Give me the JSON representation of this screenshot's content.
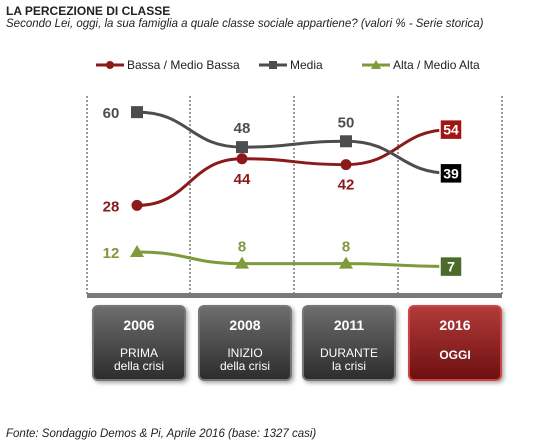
{
  "title": "LA PERCEZIONE DI CLASSE",
  "subtitle": "Secondo Lei, oggi, la sua famiglia a quale classe sociale appartiene?  (valori % - Serie storica)",
  "source": "Fonte: Sondaggio Demos & Pi, Aprile 2016 (base: 1327 casi)",
  "colors": {
    "bassa": "#8b1a1a",
    "media": "#4d4d4d",
    "alta": "#7f9a3a"
  },
  "chart_data": {
    "type": "line",
    "title": "LA PERCEZIONE DI CLASSE",
    "categories": [
      "2006",
      "2008",
      "2011",
      "2016"
    ],
    "ylim": [
      0,
      70
    ],
    "grid": false,
    "legend": "top",
    "series": [
      {
        "name": "Bassa / Medio Bassa",
        "values": [
          28,
          44,
          42,
          54
        ],
        "labels": [
          "28",
          "44",
          "42",
          "54"
        ]
      },
      {
        "name": "Media",
        "values": [
          60,
          48,
          50,
          39
        ],
        "labels": [
          "60",
          "48",
          "50",
          "39"
        ]
      },
      {
        "name": "Alta / Medio Alta",
        "values": [
          12,
          8,
          8,
          7
        ],
        "labels": [
          "12",
          "8",
          "8",
          "7"
        ]
      }
    ]
  },
  "periods": [
    {
      "year": "2006",
      "line1": "PRIMA",
      "line2": "della crisi"
    },
    {
      "year": "2008",
      "line1": "INIZIO",
      "line2": "della crisi"
    },
    {
      "year": "2011",
      "line1": "DURANTE",
      "line2": "la crisi"
    },
    {
      "year": "2016",
      "line1": "OGGI",
      "line2": ""
    }
  ]
}
